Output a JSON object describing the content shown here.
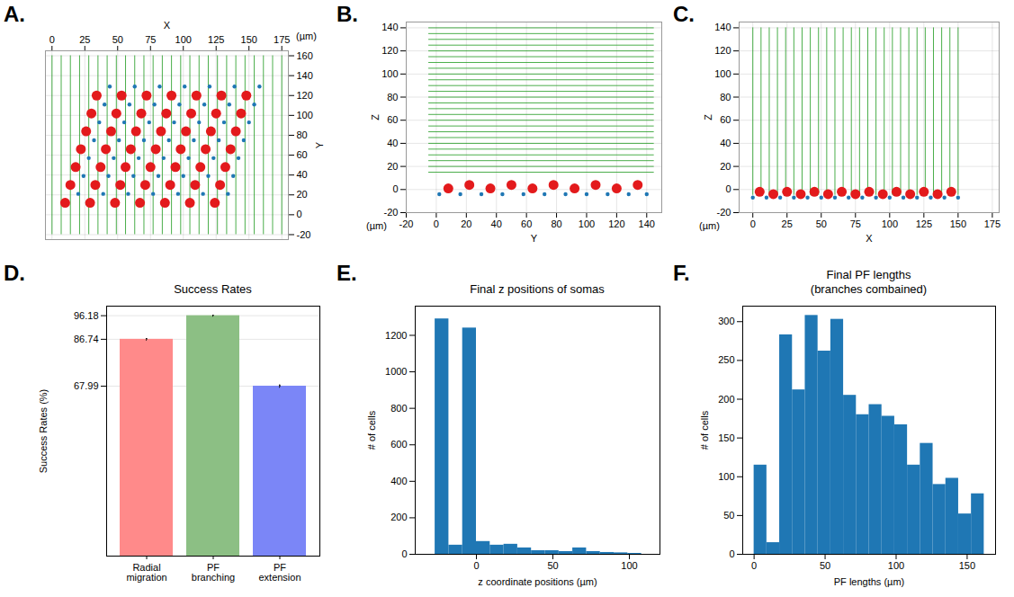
{
  "chart_data": [
    {
      "type": "scatter",
      "label": "A.",
      "xlabel": "X",
      "ylabel": "Y",
      "annotation": "(µm)",
      "xlim": [
        -5,
        180
      ],
      "xticks": [
        0,
        25,
        50,
        75,
        100,
        125,
        150,
        175
      ],
      "ylim": [
        -25,
        165
      ],
      "yticks": [
        -20,
        0,
        20,
        40,
        60,
        80,
        100,
        120,
        140,
        160
      ],
      "grid": true,
      "series": [
        {
          "type": "rule",
          "color": "#2ca02c",
          "x": [
            0,
            7,
            14,
            21,
            28,
            35,
            42,
            49,
            56,
            63,
            70,
            77,
            84,
            91,
            98,
            105,
            112,
            119,
            126,
            133,
            140,
            147,
            154,
            161,
            168,
            175
          ],
          "y_extent": [
            -20,
            160
          ]
        },
        {
          "type": "scatter",
          "marker": "dot",
          "color": "#1f77b4",
          "x": [
            20,
            39,
            58,
            77,
            96,
            115,
            134,
            24,
            43,
            62,
            81,
            100,
            119,
            138,
            28,
            47,
            66,
            85,
            104,
            123,
            142,
            32,
            51,
            70,
            89,
            108,
            127,
            146,
            36,
            55,
            74,
            93,
            112,
            131,
            150,
            40,
            59,
            78,
            97,
            116,
            135,
            154,
            44,
            63,
            82,
            101,
            120,
            139,
            158
          ],
          "y": [
            21,
            21,
            21,
            21,
            21,
            21,
            21,
            39,
            39,
            39,
            39,
            39,
            39,
            39,
            57,
            57,
            57,
            57,
            57,
            57,
            57,
            75,
            75,
            75,
            75,
            75,
            75,
            75,
            93,
            93,
            93,
            93,
            93,
            93,
            93,
            111,
            111,
            111,
            111,
            111,
            111,
            111,
            129,
            129,
            129,
            129,
            129,
            129,
            129
          ]
        },
        {
          "type": "scatter",
          "marker": "circle",
          "color": "#e31a1c",
          "x": [
            10,
            29,
            48,
            67,
            86,
            105,
            124,
            14,
            33,
            52,
            71,
            90,
            109,
            128,
            18,
            37,
            56,
            75,
            94,
            113,
            132,
            22,
            41,
            60,
            79,
            98,
            117,
            136,
            26,
            45,
            64,
            83,
            102,
            121,
            140,
            30,
            49,
            68,
            87,
            106,
            125,
            144,
            34,
            53,
            72,
            91,
            110,
            129,
            148
          ],
          "y": [
            12,
            12,
            12,
            12,
            12,
            12,
            12,
            30,
            30,
            30,
            30,
            30,
            30,
            30,
            48,
            48,
            48,
            48,
            48,
            48,
            48,
            66,
            66,
            66,
            66,
            66,
            66,
            66,
            84,
            84,
            84,
            84,
            84,
            84,
            84,
            102,
            102,
            102,
            102,
            102,
            102,
            102,
            120,
            120,
            120,
            120,
            120,
            120,
            120
          ]
        }
      ]
    },
    {
      "type": "scatter",
      "label": "B.",
      "xlabel": "Y",
      "ylabel": "Z",
      "annotation": "(µm)",
      "xlim": [
        -20,
        150
      ],
      "xticks": [
        -20,
        0,
        20,
        40,
        60,
        80,
        100,
        120,
        140
      ],
      "ylim": [
        -20,
        145
      ],
      "yticks": [
        -20,
        0,
        20,
        40,
        60,
        80,
        100,
        120,
        140
      ],
      "grid": true,
      "series": [
        {
          "type": "rule",
          "color": "#2ca02c",
          "y": [
            15,
            20,
            25,
            30,
            35,
            40,
            45,
            50,
            55,
            60,
            65,
            70,
            75,
            80,
            85,
            90,
            95,
            100,
            105,
            110,
            115,
            120,
            125,
            130,
            135,
            140
          ],
          "x_extent": [
            -5,
            145
          ]
        },
        {
          "type": "scatter",
          "marker": "dot",
          "color": "#1f77b4",
          "x": [
            2,
            16,
            30,
            44,
            58,
            72,
            86,
            100,
            114,
            128,
            140
          ],
          "y": [
            -4,
            -4,
            -4,
            -4,
            -4,
            -4,
            -4,
            -4,
            -4,
            -4,
            -4
          ]
        },
        {
          "type": "scatter",
          "marker": "circle",
          "color": "#e31a1c",
          "x": [
            8,
            22,
            36,
            50,
            64,
            78,
            92,
            106,
            120,
            134
          ],
          "y": [
            1,
            4,
            1,
            4,
            1,
            4,
            1,
            4,
            1,
            4
          ]
        }
      ]
    },
    {
      "type": "scatter",
      "label": "C.",
      "xlabel": "X",
      "ylabel": "Z",
      "annotation": "(µm)",
      "xlim": [
        -10,
        180
      ],
      "xticks": [
        0,
        25,
        50,
        75,
        100,
        125,
        150,
        175
      ],
      "ylim": [
        -20,
        145
      ],
      "yticks": [
        -20,
        0,
        20,
        40,
        60,
        80,
        100,
        120,
        140
      ],
      "grid": true,
      "series": [
        {
          "type": "rule",
          "color": "#2ca02c",
          "x": [
            0,
            6,
            12,
            18,
            24,
            30,
            36,
            42,
            48,
            54,
            60,
            66,
            72,
            78,
            84,
            90,
            96,
            102,
            108,
            114,
            120,
            126,
            132,
            138,
            144,
            150
          ],
          "y_extent": [
            -5,
            140
          ]
        },
        {
          "type": "scatter",
          "marker": "dot",
          "color": "#1f77b4",
          "x": [
            0,
            10,
            20,
            30,
            40,
            50,
            60,
            70,
            80,
            90,
            100,
            110,
            120,
            130,
            140,
            150
          ],
          "y": [
            -7,
            -7,
            -7,
            -7,
            -7,
            -7,
            -7,
            -7,
            -7,
            -7,
            -7,
            -7,
            -7,
            -7,
            -7,
            -7
          ]
        },
        {
          "type": "scatter",
          "marker": "circle",
          "color": "#e31a1c",
          "x": [
            5,
            15,
            25,
            35,
            45,
            55,
            65,
            75,
            85,
            95,
            105,
            115,
            125,
            135,
            145
          ],
          "y": [
            -2,
            -4,
            -2,
            -4,
            -2,
            -4,
            -2,
            -4,
            -2,
            -4,
            -2,
            -4,
            -2,
            -4,
            -2
          ]
        }
      ]
    },
    {
      "type": "bar",
      "label": "D.",
      "title": "Success Rates",
      "ylabel": "Success Rates (%)",
      "categories": [
        "Radial migration",
        "PF branching",
        "PF extension"
      ],
      "values": [
        86.74,
        96.18,
        67.99
      ],
      "errors": [
        0.3,
        0.2,
        0.45
      ],
      "colors": [
        "#ff8a8a",
        "#8cbf84",
        "#7b86f7"
      ],
      "ylim": [
        0,
        100
      ],
      "yticks": [
        67.99,
        86.74,
        96.18
      ],
      "grid": true
    },
    {
      "type": "histogram",
      "label": "E.",
      "title": "Final z positions of somas",
      "xlabel": "z coordinate positions (µm)",
      "ylabel": "# of cells",
      "bins": [
        -27,
        -18,
        -9,
        0,
        9,
        18,
        27,
        36,
        45,
        54,
        63,
        72,
        81,
        90,
        99,
        108
      ],
      "counts": [
        1290,
        50,
        1240,
        70,
        50,
        55,
        35,
        20,
        20,
        15,
        35,
        15,
        10,
        8,
        5
      ],
      "color": "#1f77b4",
      "xlim": [
        -40,
        120
      ],
      "xticks": [
        0,
        50,
        100
      ],
      "ylim": [
        0,
        1360
      ],
      "yticks": [
        0,
        200,
        400,
        600,
        800,
        1000,
        1200
      ]
    },
    {
      "type": "histogram",
      "label": "F.",
      "title": "Final PF lengths",
      "subtitle": "(branches combained)",
      "xlabel": "PF lengths (µm)",
      "ylabel": "# of cells",
      "bins": [
        0,
        9,
        18,
        27,
        36,
        45,
        54,
        63,
        72,
        81,
        90,
        99,
        108,
        117,
        126,
        135,
        144,
        153,
        162
      ],
      "counts": [
        115,
        15,
        283,
        212,
        308,
        262,
        303,
        205,
        180,
        193,
        178,
        167,
        115,
        143,
        90,
        98,
        52,
        78
      ],
      "color": "#1f77b4",
      "xlim": [
        -8,
        170
      ],
      "xticks": [
        0,
        50,
        100,
        150
      ],
      "ylim": [
        0,
        320
      ],
      "yticks": [
        0,
        50,
        100,
        150,
        200,
        250,
        300
      ]
    }
  ]
}
